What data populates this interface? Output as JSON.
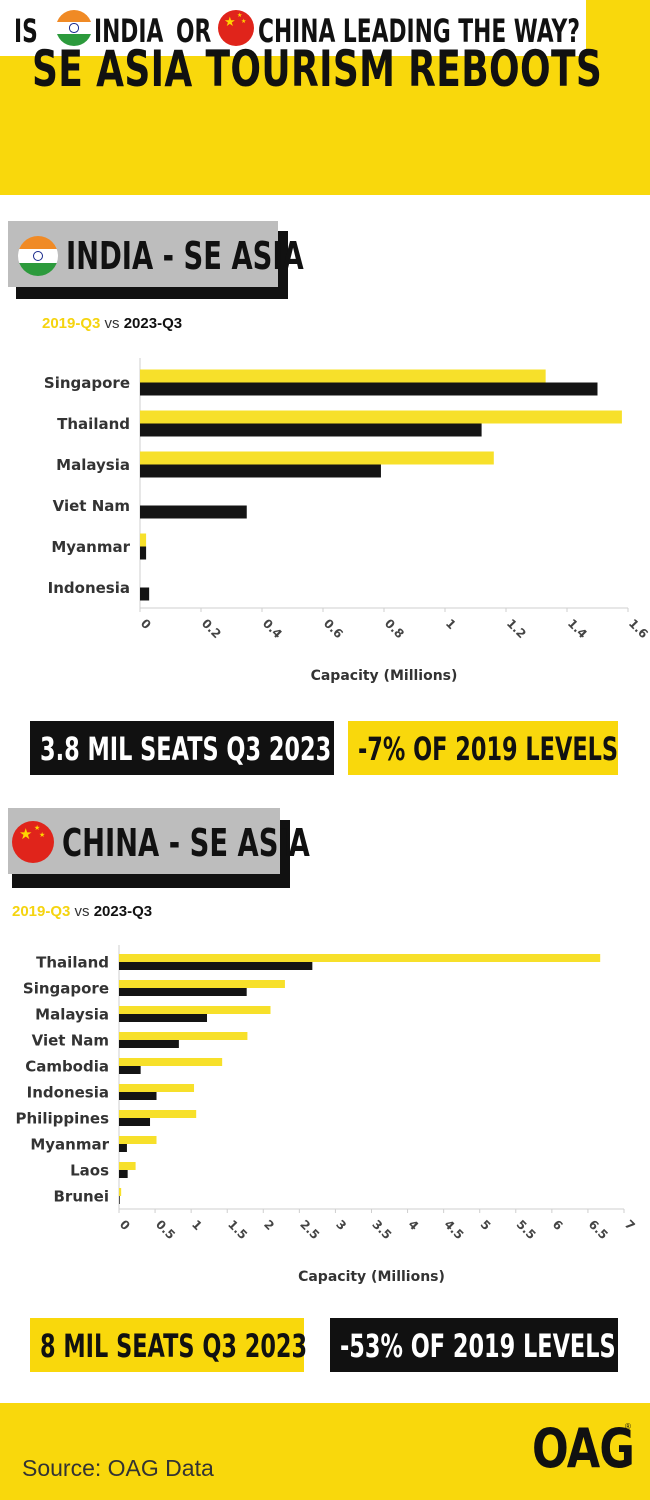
{
  "header": {
    "title": "SE ASIA TOURISM REBOOTS",
    "subtitle_is": "IS",
    "subtitle_india": "INDIA",
    "subtitle_or": "OR",
    "subtitle_china_rest": "CHINA LEADING THE WAY?"
  },
  "colors": {
    "accent_yellow": "#f9d80c",
    "bar_2019": "#f7e02a",
    "bar_2023": "#141414",
    "label_gray": "#bdbdbd"
  },
  "flags": {
    "india": "india-flag-icon",
    "china": "china-flag-icon"
  },
  "india_section": {
    "label": "INDIA - SE ASIA",
    "legend_2019": "2019-Q3",
    "legend_vs": "vs",
    "legend_2023": "2023-Q3",
    "stat_seats": "3.8 MIL SEATS Q3 2023",
    "stat_levels": "-7% OF 2019 LEVELS"
  },
  "china_section": {
    "label": "CHINA - SE ASIA",
    "legend_2019": "2019-Q3",
    "legend_vs": "vs",
    "legend_2023": "2023-Q3",
    "stat_seats": "8 MIL SEATS Q3 2023",
    "stat_levels": "-53% OF 2019 LEVELS"
  },
  "chart_data": [
    {
      "type": "bar",
      "orientation": "horizontal",
      "categories": [
        "Singapore",
        "Thailand",
        "Malaysia",
        "Viet Nam",
        "Myanmar",
        "Indonesia"
      ],
      "series": [
        {
          "name": "2019-Q3",
          "values": [
            1.33,
            1.58,
            1.16,
            0,
            0.02,
            0
          ],
          "color": "#f7e02a"
        },
        {
          "name": "2023-Q3",
          "values": [
            1.5,
            1.12,
            0.79,
            0.35,
            0.02,
            0.03
          ],
          "color": "#141414"
        }
      ],
      "xlabel": "Capacity (Millions)",
      "xlim": [
        0,
        1.6
      ],
      "xticks": [
        "0",
        "0.2",
        "0.4",
        "0.6",
        "0.8",
        "1",
        "1.2",
        "1.4",
        "1.6"
      ],
      "grid": false
    },
    {
      "type": "bar",
      "orientation": "horizontal",
      "categories": [
        "Thailand",
        "Singapore",
        "Malaysia",
        "Viet Nam",
        "Cambodia",
        "Indonesia",
        "Philippines",
        "Myanmar",
        "Laos",
        "Brunei"
      ],
      "series": [
        {
          "name": "2019-Q3",
          "values": [
            6.67,
            2.3,
            2.1,
            1.78,
            1.43,
            1.04,
            1.07,
            0.52,
            0.23,
            0.03
          ],
          "color": "#f7e02a"
        },
        {
          "name": "2023-Q3",
          "values": [
            2.68,
            1.77,
            1.22,
            0.83,
            0.3,
            0.52,
            0.43,
            0.11,
            0.12,
            0.01
          ],
          "color": "#141414"
        }
      ],
      "xlabel": "Capacity (Millions)",
      "xlim": [
        0,
        7
      ],
      "xticks": [
        "0",
        "0.5",
        "1",
        "1.5",
        "2",
        "2.5",
        "3",
        "3.5",
        "4",
        "4.5",
        "5",
        "5.5",
        "6",
        "6.5",
        "7"
      ],
      "grid": false
    }
  ],
  "footer": {
    "source": "Source: OAG Data",
    "logo": "OAG",
    "logo_mark": "®"
  }
}
